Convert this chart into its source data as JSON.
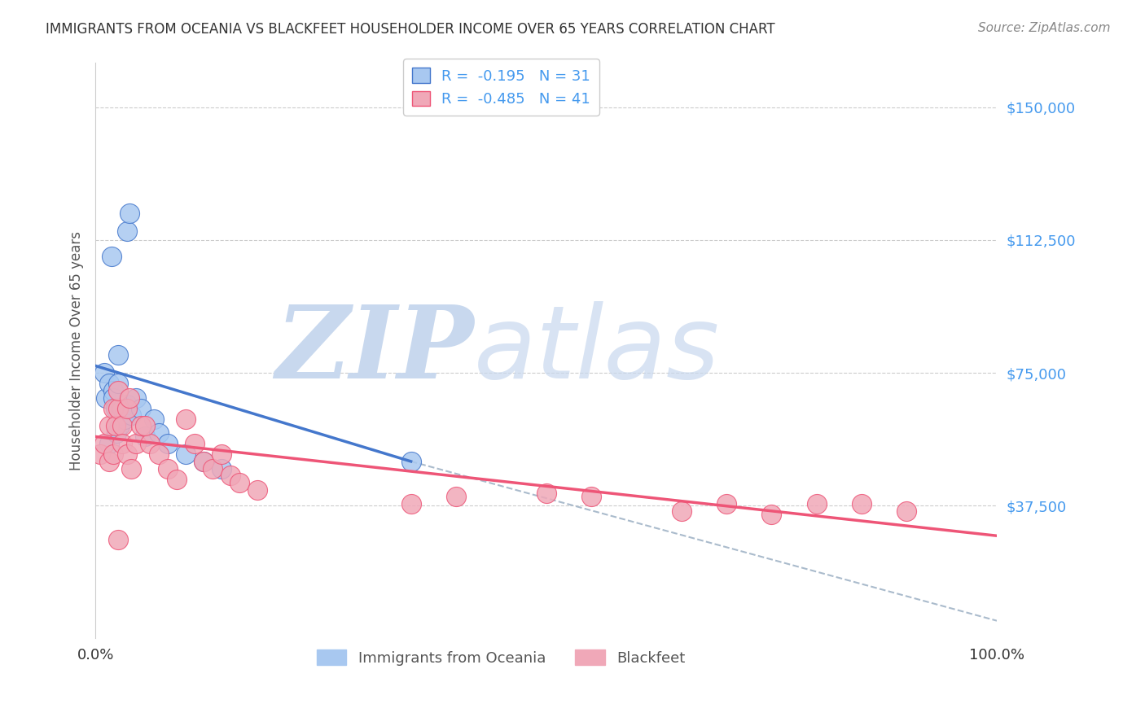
{
  "title": "IMMIGRANTS FROM OCEANIA VS BLACKFEET HOUSEHOLDER INCOME OVER 65 YEARS CORRELATION CHART",
  "source": "Source: ZipAtlas.com",
  "ylabel": "Householder Income Over 65 years",
  "xlim": [
    0.0,
    100.0
  ],
  "ylim": [
    0,
    162500
  ],
  "yticks": [
    0,
    37500,
    75000,
    112500,
    150000
  ],
  "ytick_labels": [
    "",
    "$37,500",
    "$75,000",
    "$112,500",
    "$150,000"
  ],
  "xtick_labels": [
    "0.0%",
    "100.0%"
  ],
  "legend_r1": "R =  -0.195   N = 31",
  "legend_r2": "R =  -0.485   N = 41",
  "legend_label1": "Immigrants from Oceania",
  "legend_label2": "Blackfeet",
  "watermark": "ZIPatlas",
  "scatter_oceania_x": [
    1.0,
    1.2,
    1.5,
    1.5,
    1.8,
    2.0,
    2.0,
    2.2,
    2.3,
    2.5,
    2.5,
    2.7,
    2.8,
    2.9,
    3.0,
    3.1,
    3.2,
    3.5,
    3.5,
    3.8,
    4.0,
    4.5,
    5.0,
    5.5,
    6.5,
    7.0,
    8.0,
    10.0,
    12.0,
    14.0,
    35.0
  ],
  "scatter_oceania_y": [
    75000,
    68000,
    72000,
    55000,
    108000,
    70000,
    68000,
    65000,
    58000,
    80000,
    72000,
    60000,
    65000,
    63000,
    65000,
    63000,
    62000,
    66000,
    115000,
    120000,
    63000,
    68000,
    65000,
    57000,
    62000,
    58000,
    55000,
    52000,
    50000,
    48000,
    50000
  ],
  "scatter_blackfeet_x": [
    0.5,
    1.0,
    1.5,
    1.5,
    2.0,
    2.0,
    2.2,
    2.5,
    2.5,
    3.0,
    3.0,
    3.5,
    3.5,
    3.8,
    4.0,
    4.5,
    5.0,
    6.0,
    7.0,
    8.0,
    9.0,
    10.0,
    11.0,
    12.0,
    13.0,
    14.0,
    15.0,
    16.0,
    18.0,
    35.0,
    40.0,
    50.0,
    55.0,
    65.0,
    70.0,
    75.0,
    80.0,
    85.0,
    90.0,
    2.5,
    5.5
  ],
  "scatter_blackfeet_y": [
    52000,
    55000,
    50000,
    60000,
    52000,
    65000,
    60000,
    65000,
    70000,
    60000,
    55000,
    65000,
    52000,
    68000,
    48000,
    55000,
    60000,
    55000,
    52000,
    48000,
    45000,
    62000,
    55000,
    50000,
    48000,
    52000,
    46000,
    44000,
    42000,
    38000,
    40000,
    41000,
    40000,
    36000,
    38000,
    35000,
    38000,
    38000,
    36000,
    28000,
    60000
  ],
  "color_oceania": "#a8c8f0",
  "color_blackfeet": "#f0a8b8",
  "color_line_oceania": "#4477cc",
  "color_line_blackfeet": "#ee5577",
  "color_dashed": "#aabbcc",
  "background_color": "#ffffff",
  "grid_color": "#cccccc",
  "title_color": "#333333",
  "axis_label_color": "#555555",
  "ytick_color": "#4499ee",
  "xtick_color": "#333333",
  "legend_text_color": "#4499ee",
  "watermark_color": "#c8d8ee",
  "oceania_trend_x0": 0.0,
  "oceania_trend_x1": 35.0,
  "oceania_trend_y0": 77000,
  "oceania_trend_y1": 50000,
  "blackfeet_trend_x0": 0.0,
  "blackfeet_trend_x1": 100.0,
  "blackfeet_trend_y0": 57000,
  "blackfeet_trend_y1": 29000,
  "dashed_x0": 35.0,
  "dashed_x1": 100.0,
  "dashed_y0": 50000,
  "dashed_y1": 5000
}
